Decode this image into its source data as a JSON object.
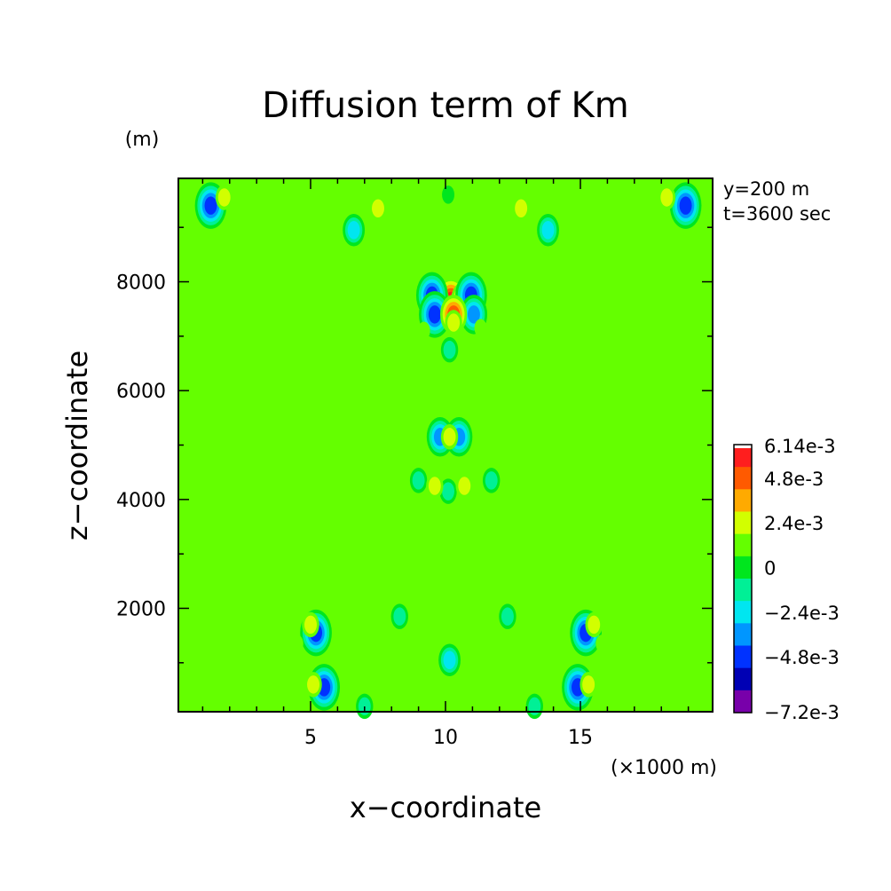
{
  "chart_data": {
    "type": "heatmap",
    "title": "Diffusion term of Km",
    "xlabel": "x−coordinate",
    "ylabel": "z−coordinate",
    "x_unit": "(×1000 m)",
    "y_unit": "(m)",
    "info": [
      "y=200 m",
      "t=3600 sec"
    ],
    "xlim": [
      0.1,
      19.9
    ],
    "ylim": [
      100,
      9900
    ],
    "x_ticks": [
      5,
      10,
      15
    ],
    "y_ticks": [
      2000,
      4000,
      6000,
      8000
    ],
    "background_value": 0,
    "colorbar": {
      "max_label": "6.14e-3",
      "min_label": "−7.2e-3",
      "labels": [
        {
          "text": "4.8e-3",
          "value": 0.0048
        },
        {
          "text": "2.4e-3",
          "value": 0.0024
        },
        {
          "text": "0",
          "value": 0
        },
        {
          "text": "−2.4e-3",
          "value": -0.0024
        },
        {
          "text": "−4.8e-3",
          "value": -0.0048
        }
      ],
      "levels": [
        {
          "value": 0.006,
          "color": "#ff1e1e"
        },
        {
          "value": 0.0048,
          "color": "#ff5a00"
        },
        {
          "value": 0.0036,
          "color": "#ffaa00"
        },
        {
          "value": 0.0024,
          "color": "#d2ff00"
        },
        {
          "value": 0.0012,
          "color": "#64ff00"
        },
        {
          "value": -0.0012,
          "color": "#00e61e"
        },
        {
          "value": -0.0024,
          "color": "#00f096"
        },
        {
          "value": -0.0036,
          "color": "#00e6f0"
        },
        {
          "value": -0.0048,
          "color": "#0096ff"
        },
        {
          "value": -0.006,
          "color": "#0032ff"
        },
        {
          "value": -0.0072,
          "color": "#0000b4"
        },
        {
          "value": -0.008,
          "color": "#7800aa"
        }
      ]
    },
    "features": [
      {
        "x": 10.2,
        "z": 7650,
        "v": 0.006
      },
      {
        "x": 10.7,
        "z": 7650,
        "v": 0.0055
      },
      {
        "x": 9.8,
        "z": 7700,
        "v": 0.0035
      },
      {
        "x": 11.0,
        "z": 7700,
        "v": 0.0035
      },
      {
        "x": 9.5,
        "z": 7750,
        "v": -0.0065
      },
      {
        "x": 10.95,
        "z": 7750,
        "v": -0.0065
      },
      {
        "x": 9.6,
        "z": 7400,
        "v": -0.006
      },
      {
        "x": 11.05,
        "z": 7400,
        "v": -0.0055
      },
      {
        "x": 10.3,
        "z": 7400,
        "v": 0.005
      },
      {
        "x": 10.3,
        "z": 7250,
        "v": 0.003
      },
      {
        "x": 10.15,
        "z": 6750,
        "v": -0.0025
      },
      {
        "x": 9.2,
        "z": 7100,
        "v": 0.002
      },
      {
        "x": 11.3,
        "z": 7150,
        "v": 0.002
      },
      {
        "x": 9.8,
        "z": 5150,
        "v": -0.005
      },
      {
        "x": 10.5,
        "z": 5150,
        "v": -0.005
      },
      {
        "x": 10.15,
        "z": 5150,
        "v": 0.003
      },
      {
        "x": 9.0,
        "z": 4350,
        "v": -0.003
      },
      {
        "x": 11.7,
        "z": 4350,
        "v": -0.003
      },
      {
        "x": 10.1,
        "z": 4150,
        "v": -0.0025
      },
      {
        "x": 9.6,
        "z": 4250,
        "v": 0.0025
      },
      {
        "x": 10.7,
        "z": 4250,
        "v": 0.0025
      },
      {
        "x": 8.3,
        "z": 1850,
        "v": -0.003
      },
      {
        "x": 12.3,
        "z": 1850,
        "v": -0.003
      },
      {
        "x": 10.15,
        "z": 1050,
        "v": -0.004
      },
      {
        "x": 5.2,
        "z": 1550,
        "v": -0.006
      },
      {
        "x": 15.2,
        "z": 1550,
        "v": -0.006
      },
      {
        "x": 5.0,
        "z": 1700,
        "v": 0.003
      },
      {
        "x": 15.5,
        "z": 1700,
        "v": 0.003
      },
      {
        "x": 4.5,
        "z": 1350,
        "v": 0.002
      },
      {
        "x": 15.8,
        "z": 1350,
        "v": 0.002
      },
      {
        "x": 5.5,
        "z": 550,
        "v": -0.0065
      },
      {
        "x": 14.9,
        "z": 550,
        "v": -0.0065
      },
      {
        "x": 5.1,
        "z": 600,
        "v": 0.003
      },
      {
        "x": 15.3,
        "z": 600,
        "v": 0.003
      },
      {
        "x": 7.0,
        "z": 200,
        "v": -0.0035
      },
      {
        "x": 13.3,
        "z": 200,
        "v": -0.0035
      },
      {
        "x": 1.3,
        "z": 9400,
        "v": -0.006
      },
      {
        "x": 18.9,
        "z": 9400,
        "v": -0.006
      },
      {
        "x": 1.8,
        "z": 9550,
        "v": 0.003
      },
      {
        "x": 18.2,
        "z": 9550,
        "v": 0.003
      },
      {
        "x": 6.6,
        "z": 8950,
        "v": -0.004
      },
      {
        "x": 13.8,
        "z": 8950,
        "v": -0.004
      },
      {
        "x": 7.5,
        "z": 9350,
        "v": 0.003
      },
      {
        "x": 12.8,
        "z": 9350,
        "v": 0.003
      },
      {
        "x": 10.1,
        "z": 9600,
        "v": -0.002
      },
      {
        "x": 0.8,
        "z": 2300,
        "v": -0.001
      },
      {
        "x": 19.2,
        "z": 2300,
        "v": -0.001
      }
    ]
  }
}
